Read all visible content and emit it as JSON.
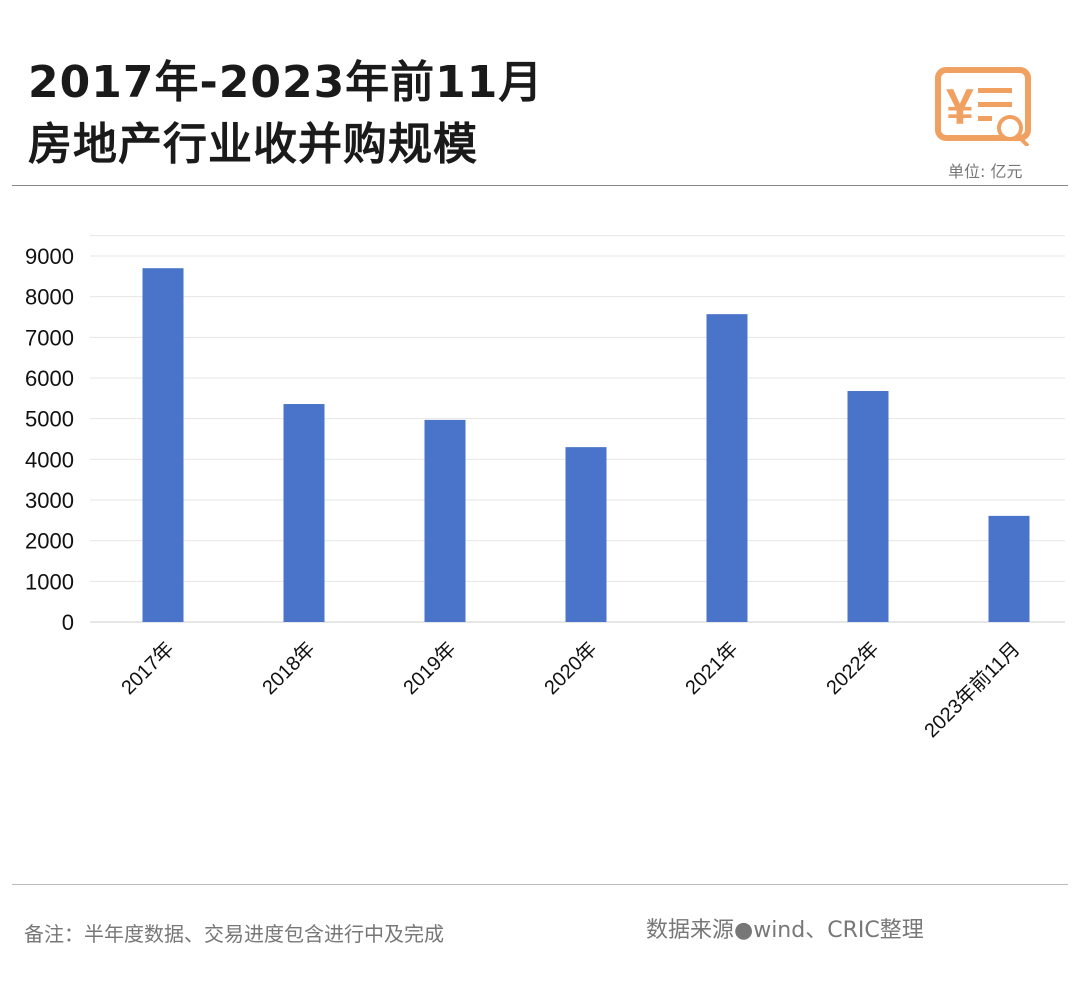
{
  "header": {
    "title_line1": "2017年-2023年前11月",
    "title_line2": "房地产行业收并购规模",
    "unit": "单位: 亿元",
    "icon": "invoice-search-icon"
  },
  "footer": {
    "note": "备注：半年度数据、交易进度包含进行中及完成",
    "source": "数据来源●wind、CRIC整理"
  },
  "colors": {
    "bar": "#4a74c9",
    "icon": "#f0a060"
  },
  "chart_data": {
    "type": "bar",
    "title": "2017年-2023年前11月 房地产行业收并购规模",
    "xlabel": "",
    "ylabel": "亿元",
    "categories": [
      "2017年",
      "2018年",
      "2019年",
      "2020年",
      "2021年",
      "2022年",
      "2023年前11月"
    ],
    "values": [
      8700,
      5360,
      4970,
      4300,
      7570,
      5680,
      2610
    ],
    "ylim": [
      0,
      9500
    ],
    "yticks": [
      0,
      1000,
      2000,
      3000,
      4000,
      5000,
      6000,
      7000,
      8000,
      9000
    ],
    "grid": true,
    "legend": "none"
  }
}
